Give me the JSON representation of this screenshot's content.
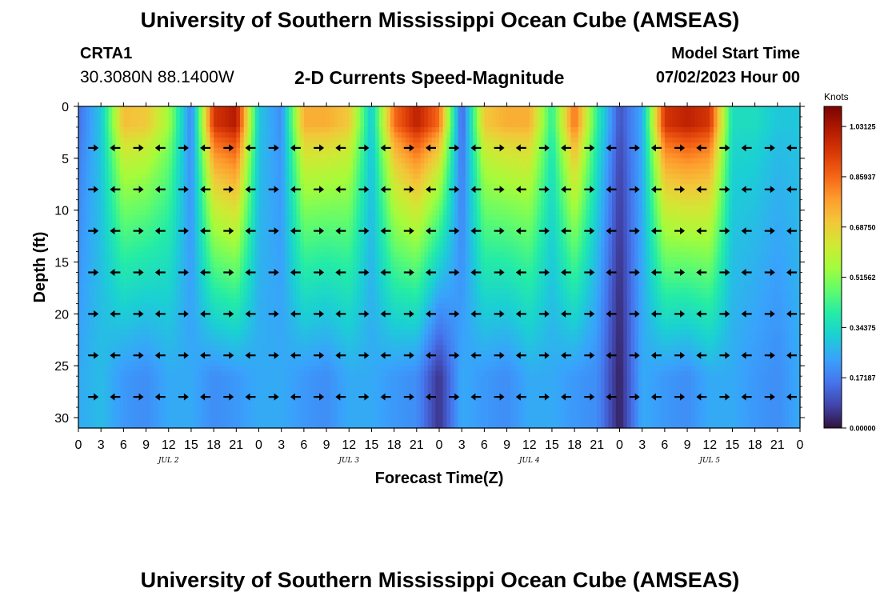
{
  "header": {
    "title": "University of Southern Mississippi Ocean Cube (AMSEAS)",
    "station": "CRTA1",
    "location": "30.3080N  88.1400W",
    "plot_title": "2-D Currents Speed-Magnitude",
    "start_label": "Model Start Time",
    "start_value": "07/02/2023 Hour 00"
  },
  "footer": {
    "title": "University of Southern Mississippi Ocean Cube (AMSEAS)"
  },
  "colors": {
    "palette": [
      "#30123b",
      "#4145ab",
      "#4675ed",
      "#39a2fc",
      "#1bcfd4",
      "#24eca6",
      "#61fc6c",
      "#a4fc3b",
      "#d1e834",
      "#f3c63a",
      "#fe9b2d",
      "#f36315",
      "#d93806",
      "#b11901",
      "#7a0403"
    ]
  },
  "chart_data": {
    "type": "heatmap",
    "title": "2-D Currents Speed-Magnitude",
    "xlabel": "Forecast Time(Z)",
    "ylabel": "Depth (ft)",
    "colorbar_label": "Knots",
    "colorbar_ticks": [
      "0.00000",
      "0.17187",
      "0.34375",
      "0.51562",
      "0.68750",
      "0.85937",
      "1.03125"
    ],
    "colorbar_range": [
      0,
      1.1
    ],
    "x_tick_labels": [
      "0",
      "3",
      "6",
      "9",
      "12",
      "15",
      "18",
      "21",
      "0",
      "3",
      "6",
      "9",
      "12",
      "15",
      "18",
      "21",
      "0",
      "3",
      "6",
      "9",
      "12",
      "15",
      "18",
      "21",
      "0",
      "3",
      "6",
      "9",
      "12",
      "15",
      "18",
      "21",
      "0"
    ],
    "x_range_hours": [
      0,
      96
    ],
    "day_labels": [
      {
        "label": "JUL 2",
        "hour": 12
      },
      {
        "label": "JUL 3",
        "hour": 36
      },
      {
        "label": "JUL 4",
        "hour": 60
      },
      {
        "label": "JUL 5",
        "hour": 84
      }
    ],
    "y_tick_labels": [
      "0",
      "5",
      "10",
      "15",
      "20",
      "25",
      "30"
    ],
    "y_range_ft": [
      0,
      31
    ],
    "arrow_depths_ft": [
      4,
      8,
      12,
      16,
      20,
      24,
      28
    ],
    "arrow_hours": [
      3,
      6,
      9,
      12,
      15,
      18,
      21,
      24,
      27,
      30,
      33,
      36,
      39,
      42,
      45,
      48,
      51,
      54,
      57,
      60,
      63,
      66,
      69,
      72,
      75,
      78,
      81,
      84,
      87,
      90,
      93,
      96
    ],
    "surface_speed_knots": [
      0.15,
      0.3,
      0.72,
      0.7,
      0.55,
      0.18,
      0.95,
      1.02,
      0.3,
      0.2,
      0.75,
      0.75,
      0.7,
      0.3,
      0.85,
      1.0,
      0.85,
      0.12,
      0.7,
      0.75,
      0.75,
      0.4,
      0.85,
      0.4,
      0.1,
      0.25,
      0.95,
      1.0,
      0.95,
      0.35,
      0.35,
      0.3,
      0.3
    ],
    "bottom_speed_knots": [
      0.25,
      0.28,
      0.22,
      0.2,
      0.25,
      0.25,
      0.2,
      0.22,
      0.25,
      0.25,
      0.22,
      0.2,
      0.25,
      0.25,
      0.22,
      0.2,
      0.05,
      0.25,
      0.22,
      0.2,
      0.25,
      0.25,
      0.22,
      0.2,
      0.02,
      0.25,
      0.22,
      0.2,
      0.25,
      0.25,
      0.22,
      0.2,
      0.25
    ]
  }
}
